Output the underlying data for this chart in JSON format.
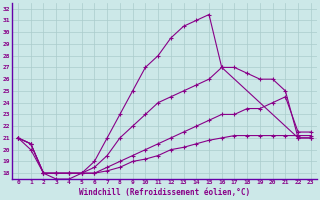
{
  "xlabel": "Windchill (Refroidissement éolien,°C)",
  "bg_color": "#cce8e8",
  "line_color": "#880088",
  "grid_color": "#aacccc",
  "spine_color": "#6600aa",
  "xlim": [
    -0.5,
    23.5
  ],
  "ylim": [
    17.5,
    32.5
  ],
  "yticks": [
    18,
    19,
    20,
    21,
    22,
    23,
    24,
    25,
    26,
    27,
    28,
    29,
    30,
    31,
    32
  ],
  "xticks": [
    0,
    1,
    2,
    3,
    4,
    5,
    6,
    7,
    8,
    9,
    10,
    11,
    12,
    13,
    14,
    15,
    16,
    17,
    18,
    19,
    20,
    21,
    22,
    23
  ],
  "lines": [
    {
      "x": [
        0,
        1,
        2,
        3,
        4,
        5,
        6,
        7,
        8,
        9,
        10,
        11,
        12,
        13,
        14,
        15,
        16,
        22,
        23
      ],
      "y": [
        21,
        20,
        18,
        18,
        18,
        18,
        19,
        21,
        23,
        25,
        27,
        28,
        29.5,
        30.5,
        31,
        31.5,
        27,
        21,
        21
      ]
    },
    {
      "x": [
        0,
        1,
        2,
        3,
        4,
        5,
        6,
        7,
        8,
        9,
        10,
        11,
        12,
        13,
        14,
        15,
        16,
        17,
        18,
        19,
        20,
        21,
        22,
        23
      ],
      "y": [
        21,
        20.5,
        18,
        18,
        18,
        18,
        18.5,
        19.5,
        21,
        22,
        23,
        24,
        24.5,
        25,
        25.5,
        26,
        27,
        27,
        26.5,
        26,
        26,
        25,
        21,
        21
      ]
    },
    {
      "x": [
        0,
        1,
        2,
        3,
        4,
        5,
        6,
        7,
        8,
        9,
        10,
        11,
        12,
        13,
        14,
        15,
        16,
        17,
        18,
        19,
        20,
        21,
        22,
        23
      ],
      "y": [
        21,
        20.5,
        18,
        18,
        18,
        18,
        18,
        18.5,
        19,
        19.5,
        20,
        20.5,
        21,
        21.5,
        22,
        22.5,
        23,
        23,
        23.5,
        23.5,
        24,
        24.5,
        21.5,
        21.5
      ]
    },
    {
      "x": [
        0,
        1,
        2,
        3,
        4,
        5,
        6,
        7,
        8,
        9,
        10,
        11,
        12,
        13,
        14,
        15,
        16,
        17,
        18,
        19,
        20,
        21,
        22,
        23
      ],
      "y": [
        21,
        20.5,
        18,
        17.5,
        17.5,
        18,
        18,
        18.2,
        18.5,
        19,
        19.2,
        19.5,
        20,
        20.2,
        20.5,
        20.8,
        21,
        21.2,
        21.2,
        21.2,
        21.2,
        21.2,
        21.2,
        21.2
      ]
    }
  ]
}
